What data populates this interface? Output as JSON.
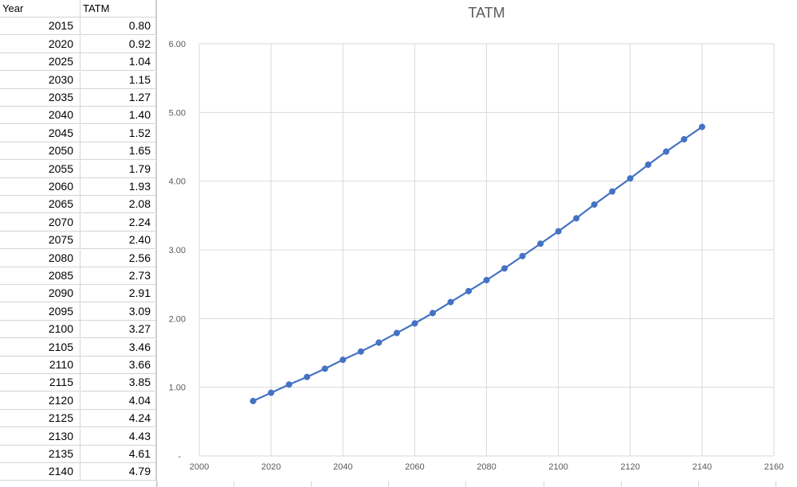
{
  "table": {
    "headers": [
      "Year",
      "TATM"
    ],
    "rows": [
      [
        "2015",
        "0.80"
      ],
      [
        "2020",
        "0.92"
      ],
      [
        "2025",
        "1.04"
      ],
      [
        "2030",
        "1.15"
      ],
      [
        "2035",
        "1.27"
      ],
      [
        "2040",
        "1.40"
      ],
      [
        "2045",
        "1.52"
      ],
      [
        "2050",
        "1.65"
      ],
      [
        "2055",
        "1.79"
      ],
      [
        "2060",
        "1.93"
      ],
      [
        "2065",
        "2.08"
      ],
      [
        "2070",
        "2.24"
      ],
      [
        "2075",
        "2.40"
      ],
      [
        "2080",
        "2.56"
      ],
      [
        "2085",
        "2.73"
      ],
      [
        "2090",
        "2.91"
      ],
      [
        "2095",
        "3.09"
      ],
      [
        "2100",
        "3.27"
      ],
      [
        "2105",
        "3.46"
      ],
      [
        "2110",
        "3.66"
      ],
      [
        "2115",
        "3.85"
      ],
      [
        "2120",
        "4.04"
      ],
      [
        "2125",
        "4.24"
      ],
      [
        "2130",
        "4.43"
      ],
      [
        "2135",
        "4.61"
      ],
      [
        "2140",
        "4.79"
      ]
    ]
  },
  "chart_data": {
    "type": "scatter",
    "title": "TATM",
    "xlabel": "",
    "ylabel": "",
    "xlim": [
      2000,
      2160
    ],
    "ylim": [
      0,
      6
    ],
    "x_ticks": [
      "2000",
      "2020",
      "2040",
      "2060",
      "2080",
      "2100",
      "2120",
      "2140",
      "2160"
    ],
    "y_ticks": [
      "-",
      "1.00",
      "2.00",
      "3.00",
      "4.00",
      "5.00",
      "6.00"
    ],
    "grid": true,
    "legend": "none",
    "series": [
      {
        "color": "#4472c4",
        "x": [
          2015,
          2020,
          2025,
          2030,
          2035,
          2040,
          2045,
          2050,
          2055,
          2060,
          2065,
          2070,
          2075,
          2080,
          2085,
          2090,
          2095,
          2100,
          2105,
          2110,
          2115,
          2120,
          2125,
          2130,
          2135,
          2140
        ],
        "y": [
          0.8,
          0.92,
          1.04,
          1.15,
          1.27,
          1.4,
          1.52,
          1.65,
          1.79,
          1.93,
          2.08,
          2.24,
          2.4,
          2.56,
          2.73,
          2.91,
          3.09,
          3.27,
          3.46,
          3.66,
          3.85,
          4.04,
          4.24,
          4.43,
          4.61,
          4.79
        ]
      }
    ]
  }
}
